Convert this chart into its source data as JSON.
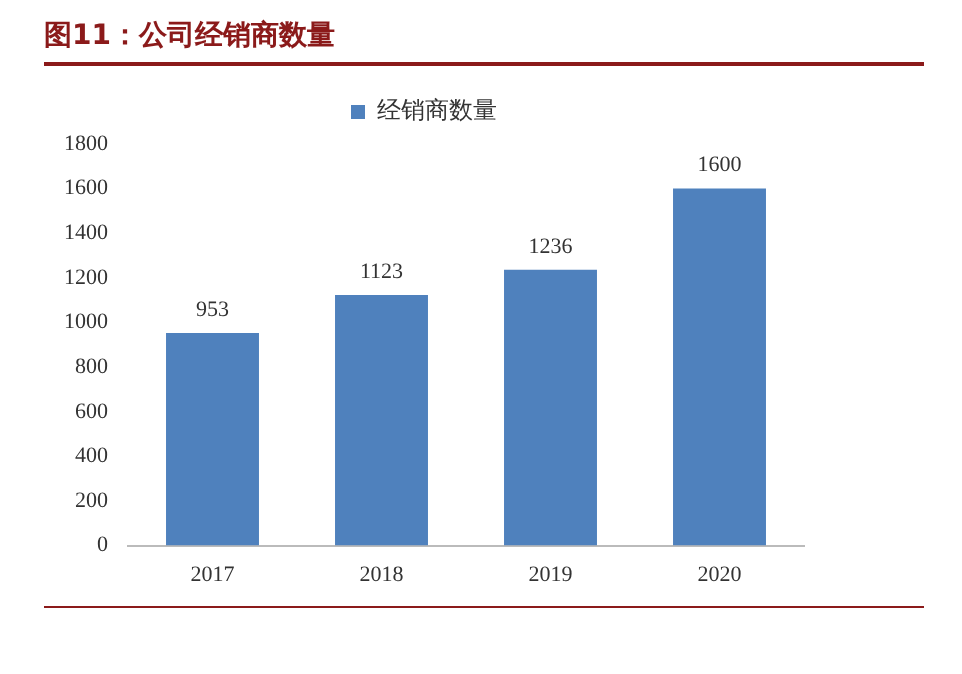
{
  "chart_data": {
    "type": "bar",
    "title": "图11：公司经销商数量",
    "categories": [
      "2017",
      "2018",
      "2019",
      "2020"
    ],
    "series": [
      {
        "name": "经销商数量",
        "color": "#4f81bd",
        "values": [
          953,
          1123,
          1236,
          1600
        ]
      }
    ],
    "ylim": [
      0,
      1800
    ],
    "yticks": [
      0,
      200,
      400,
      600,
      800,
      1000,
      1200,
      1400,
      1600,
      1800
    ],
    "grid": false,
    "legend": "top",
    "data_labels": true
  }
}
